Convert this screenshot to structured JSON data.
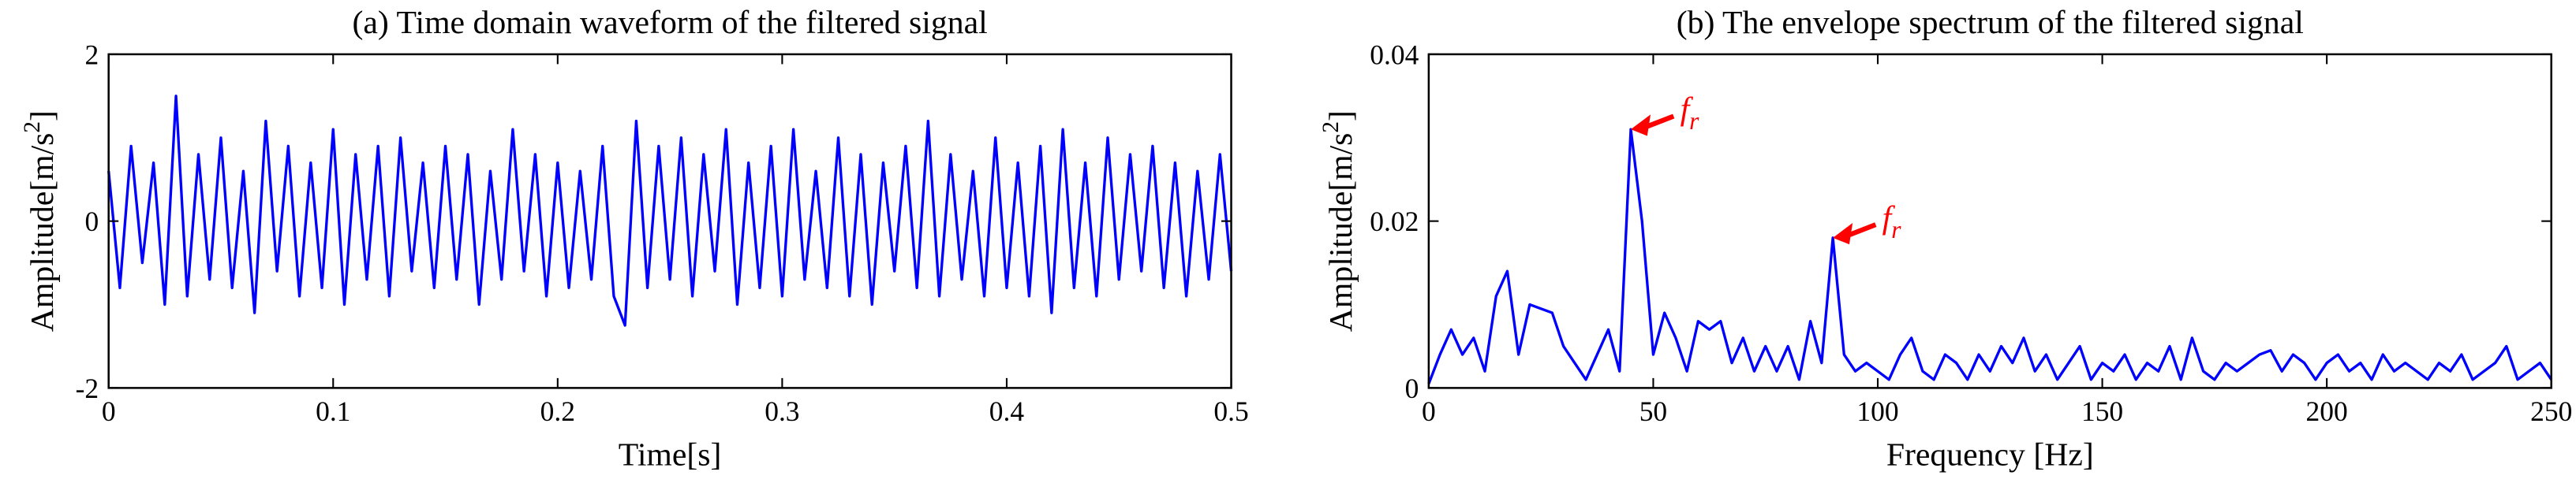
{
  "chart_data": [
    {
      "type": "line",
      "title": "(a) Time domain waveform of the filtered signal",
      "xlabel": "Time[s]",
      "ylabel": {
        "main": "Amplitude[m/s",
        "sup": "2",
        "end": "]"
      },
      "color": "#0000ff",
      "xlim": [
        0,
        0.5
      ],
      "ylim": [
        -2,
        2
      ],
      "xticks": [
        0,
        0.1,
        0.2,
        0.3,
        0.4,
        0.5
      ],
      "yticks": [
        -2,
        0,
        2
      ],
      "x": [
        0,
        0.005,
        0.01,
        0.015,
        0.02,
        0.025,
        0.03,
        0.035,
        0.04,
        0.045,
        0.05,
        0.055,
        0.06,
        0.065,
        0.07,
        0.075,
        0.08,
        0.085,
        0.09,
        0.095,
        0.1,
        0.105,
        0.11,
        0.115,
        0.12,
        0.125,
        0.13,
        0.135,
        0.14,
        0.145,
        0.15,
        0.155,
        0.16,
        0.165,
        0.17,
        0.175,
        0.18,
        0.185,
        0.19,
        0.195,
        0.2,
        0.205,
        0.21,
        0.215,
        0.22,
        0.225,
        0.23,
        0.235,
        0.24,
        0.245,
        0.25,
        0.255,
        0.26,
        0.265,
        0.27,
        0.275,
        0.28,
        0.285,
        0.29,
        0.295,
        0.3,
        0.305,
        0.31,
        0.315,
        0.32,
        0.325,
        0.33,
        0.335,
        0.34,
        0.345,
        0.35,
        0.355,
        0.36,
        0.365,
        0.37,
        0.375,
        0.38,
        0.385,
        0.39,
        0.395,
        0.4,
        0.405,
        0.41,
        0.415,
        0.42,
        0.425,
        0.43,
        0.435,
        0.44,
        0.445,
        0.45,
        0.455,
        0.46,
        0.465,
        0.47,
        0.475,
        0.48,
        0.485,
        0.49,
        0.495,
        0.5
      ],
      "values": [
        0.6,
        -0.8,
        0.9,
        -0.5,
        0.7,
        -1.0,
        1.5,
        -0.9,
        0.8,
        -0.7,
        1.0,
        -0.8,
        0.6,
        -1.1,
        1.2,
        -0.6,
        0.9,
        -0.9,
        0.7,
        -0.8,
        1.1,
        -1.0,
        0.8,
        -0.7,
        0.9,
        -0.9,
        1.0,
        -0.6,
        0.7,
        -0.8,
        0.9,
        -0.7,
        0.8,
        -1.0,
        0.6,
        -0.7,
        1.1,
        -0.6,
        0.8,
        -0.9,
        0.7,
        -0.8,
        0.6,
        -0.7,
        0.9,
        -0.9,
        -1.25,
        1.2,
        -0.8,
        0.9,
        -0.7,
        1.0,
        -0.9,
        0.8,
        -0.6,
        1.1,
        -1.0,
        0.7,
        -0.8,
        0.9,
        -0.9,
        1.1,
        -0.7,
        0.6,
        -0.8,
        1.0,
        -0.9,
        0.8,
        -1.0,
        0.7,
        -0.6,
        0.9,
        -0.8,
        1.2,
        -0.9,
        0.8,
        -0.7,
        0.6,
        -0.9,
        1.0,
        -0.8,
        0.7,
        -0.9,
        0.9,
        -1.1,
        1.1,
        -0.8,
        0.7,
        -0.9,
        1.0,
        -0.7,
        0.8,
        -0.6,
        0.9,
        -0.8,
        0.7,
        -0.9,
        0.6,
        -0.7,
        0.8,
        -0.6
      ]
    },
    {
      "type": "line",
      "title": "(b) The envelope spectrum of the filtered signal",
      "xlabel": "Frequency [Hz]",
      "ylabel": {
        "main": "Amplitude[m/s",
        "sup": "2",
        "end": "]"
      },
      "color": "#0000ff",
      "xlim": [
        0,
        250
      ],
      "ylim": [
        0,
        0.04
      ],
      "xticks": [
        0,
        50,
        100,
        150,
        200,
        250
      ],
      "yticks": [
        0,
        0.02,
        0.04
      ],
      "x": [
        0,
        2.5,
        5,
        7.5,
        10,
        12.5,
        15,
        17.5,
        20,
        22.5,
        25,
        27.5,
        30,
        32.5,
        35,
        37.5,
        40,
        42.5,
        45,
        47.5,
        50,
        52.5,
        55,
        57.5,
        60,
        62.5,
        65,
        67.5,
        70,
        72.5,
        75,
        77.5,
        80,
        82.5,
        85,
        87.5,
        90,
        92.5,
        95,
        97.5,
        100,
        102.5,
        105,
        107.5,
        110,
        112.5,
        115,
        117.5,
        120,
        122.5,
        125,
        127.5,
        130,
        132.5,
        135,
        137.5,
        140,
        142.5,
        145,
        147.5,
        150,
        152.5,
        155,
        157.5,
        160,
        162.5,
        165,
        167.5,
        170,
        172.5,
        175,
        177.5,
        180,
        182.5,
        185,
        187.5,
        190,
        192.5,
        195,
        197.5,
        200,
        202.5,
        205,
        207.5,
        210,
        212.5,
        215,
        217.5,
        220,
        222.5,
        225,
        227.5,
        230,
        232.5,
        235,
        237.5,
        240,
        242.5,
        245,
        247.5,
        250
      ],
      "values": [
        0.0005,
        0.004,
        0.007,
        0.004,
        0.006,
        0.002,
        0.011,
        0.014,
        0.004,
        0.01,
        0.0095,
        0.009,
        0.005,
        0.003,
        0.001,
        0.004,
        0.007,
        0.002,
        0.031,
        0.02,
        0.004,
        0.009,
        0.006,
        0.002,
        0.008,
        0.007,
        0.008,
        0.003,
        0.006,
        0.002,
        0.005,
        0.002,
        0.005,
        0.001,
        0.008,
        0.003,
        0.018,
        0.004,
        0.002,
        0.003,
        0.002,
        0.001,
        0.004,
        0.006,
        0.002,
        0.001,
        0.004,
        0.003,
        0.001,
        0.004,
        0.002,
        0.005,
        0.003,
        0.006,
        0.002,
        0.004,
        0.001,
        0.003,
        0.005,
        0.001,
        0.003,
        0.002,
        0.004,
        0.001,
        0.003,
        0.002,
        0.005,
        0.001,
        0.006,
        0.002,
        0.001,
        0.003,
        0.002,
        0.003,
        0.004,
        0.0045,
        0.002,
        0.004,
        0.003,
        0.001,
        0.003,
        0.004,
        0.002,
        0.003,
        0.001,
        0.004,
        0.002,
        0.003,
        0.002,
        0.001,
        0.003,
        0.002,
        0.004,
        0.001,
        0.002,
        0.003,
        0.005,
        0.001,
        0.002,
        0.003,
        0.001
      ],
      "annotations": [
        {
          "text": "f",
          "sub": "r",
          "x": 45,
          "y": 0.031
        },
        {
          "text": "f",
          "sub": "r",
          "x": 90,
          "y": 0.018
        }
      ],
      "annotation_color": "#ff0000"
    }
  ]
}
